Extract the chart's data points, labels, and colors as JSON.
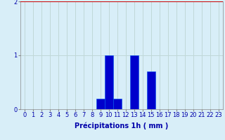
{
  "categories": [
    0,
    1,
    2,
    3,
    4,
    5,
    6,
    7,
    8,
    9,
    10,
    11,
    12,
    13,
    14,
    15,
    16,
    17,
    18,
    19,
    20,
    21,
    22,
    23
  ],
  "values": [
    0,
    0,
    0,
    0,
    0,
    0,
    0,
    0,
    0,
    0.2,
    1.0,
    0.2,
    0,
    1.0,
    0,
    0.7,
    0,
    0,
    0,
    0,
    0,
    0,
    0,
    0
  ],
  "bar_color": "#0000cc",
  "bar_edge_color": "#0055ee",
  "background_color": "#d8eef8",
  "grid_color": "#c0d8d8",
  "top_line_color": "#cc0000",
  "axis_color": "#0000aa",
  "xlabel": "Précipitations 1h ( mm )",
  "ylim_max": 2.0,
  "yticks": [
    0,
    1,
    2
  ],
  "xlim": [
    -0.5,
    23.5
  ],
  "label_fontsize": 7,
  "tick_fontsize": 6
}
